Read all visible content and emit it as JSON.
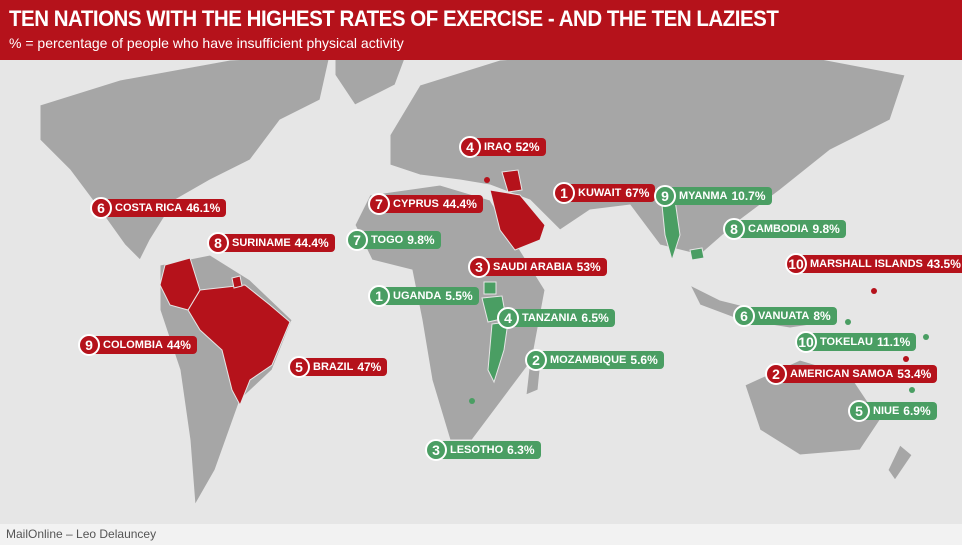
{
  "header": {
    "title": "TEN NATIONS WITH THE HIGHEST RATES OF EXERCISE - AND THE TEN LAZIEST",
    "subtitle": "% = percentage of people who have insufficient physical activity"
  },
  "laziest": {
    "color": "#b5121b",
    "labels": [
      {
        "rank": 1,
        "name": "KUWAIT",
        "value": "67%"
      },
      {
        "rank": 2,
        "name": "AMERICAN SAMOA",
        "value": "53.4%"
      },
      {
        "rank": 3,
        "name": "SAUDI ARABIA",
        "value": "53%"
      },
      {
        "rank": 4,
        "name": "IRAQ",
        "value": "52%"
      },
      {
        "rank": 5,
        "name": "BRAZIL",
        "value": "47%"
      },
      {
        "rank": 6,
        "name": "COSTA RICA",
        "value": "46.1%"
      },
      {
        "rank": 7,
        "name": "CYPRUS",
        "value": "44.4%"
      },
      {
        "rank": 8,
        "name": "SURINAME",
        "value": "44.4%"
      },
      {
        "rank": 9,
        "name": "COLOMBIA",
        "value": "44%"
      },
      {
        "rank": 10,
        "name": "MARSHALL ISLANDS",
        "value": "43.5%"
      }
    ]
  },
  "most_active": {
    "color": "#4a9e63",
    "labels": [
      {
        "rank": 1,
        "name": "UGANDA",
        "value": "5.5%"
      },
      {
        "rank": 2,
        "name": "MOZAMBIQUE",
        "value": "5.6%"
      },
      {
        "rank": 3,
        "name": "LESOTHO",
        "value": "6.3%"
      },
      {
        "rank": 4,
        "name": "TANZANIA",
        "value": "6.5%"
      },
      {
        "rank": 5,
        "name": "NIUE",
        "value": "6.9%"
      },
      {
        "rank": 6,
        "name": "VANUATA",
        "value": "8%"
      },
      {
        "rank": 7,
        "name": "TOGO",
        "value": "9.8%"
      },
      {
        "rank": 8,
        "name": "CAMBODIA",
        "value": "9.8%"
      },
      {
        "rank": 9,
        "name": "MYANMA",
        "value": "10.7%"
      },
      {
        "rank": 10,
        "name": "TOKELAU",
        "value": "11.1%"
      }
    ]
  },
  "credit": "MailOnline – Leo Delauncey"
}
